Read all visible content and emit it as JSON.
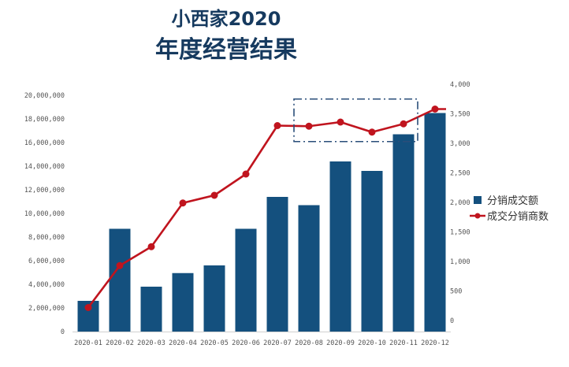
{
  "chart_data": {
    "type": "bar+line",
    "title_line1": "小西家2020",
    "title_line2": "年度经营结果",
    "categories": [
      "2020-01",
      "2020-02",
      "2020-03",
      "2020-04",
      "2020-05",
      "2020-06",
      "2020-07",
      "2020-08",
      "2020-09",
      "2020-10",
      "2020-11",
      "2020-12"
    ],
    "series": [
      {
        "name": "分销成交额",
        "type": "bar",
        "axis": "left",
        "color": "#14507e",
        "values": [
          2600000,
          8700000,
          3800000,
          4950000,
          5600000,
          8700000,
          11400000,
          10700000,
          14400000,
          13600000,
          16700000,
          18500000
        ]
      },
      {
        "name": "成交分销商数",
        "type": "line",
        "axis": "right",
        "color": "#c0141e",
        "values": [
          220,
          930,
          1250,
          1990,
          2120,
          2480,
          3300,
          3290,
          3360,
          3190,
          3330,
          3580
        ]
      }
    ],
    "y_left": {
      "min": 0,
      "max": 20000000,
      "ticks": [
        "0",
        "2,000,000",
        "4,000,000",
        "6,000,000",
        "8,000,000",
        "10,000,000",
        "12,000,000",
        "14,000,000",
        "16,000,000",
        "18,000,000",
        "20,000,000"
      ]
    },
    "y_right": {
      "min": 0,
      "max": 4000,
      "ticks": [
        "0",
        "500",
        "1,000",
        "1,500",
        "2,000",
        "2,500",
        "3,000",
        "3,500",
        "4,000"
      ]
    },
    "grid": false,
    "legend_position": "right",
    "annotation": {
      "type": "dash-dot-rectangle",
      "around": [
        "2020-08",
        "2020-10"
      ],
      "y_range_right": [
        3030,
        3750
      ],
      "color": "#2a4e7a"
    }
  }
}
